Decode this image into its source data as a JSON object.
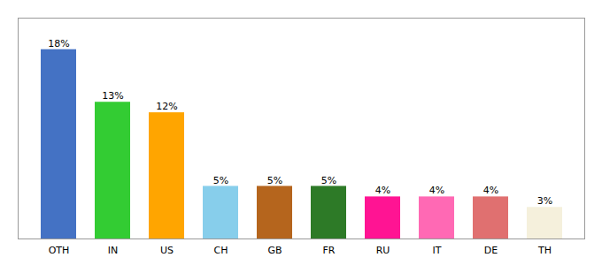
{
  "chart_data": {
    "type": "bar",
    "categories": [
      "OTH",
      "IN",
      "US",
      "CH",
      "GB",
      "FR",
      "RU",
      "IT",
      "DE",
      "TH"
    ],
    "values": [
      18,
      13,
      12,
      5,
      5,
      5,
      4,
      4,
      4,
      3
    ],
    "value_labels": [
      "18%",
      "13%",
      "12%",
      "5%",
      "5%",
      "5%",
      "4%",
      "4%",
      "4%",
      "3%"
    ],
    "colors": [
      "#4472C4",
      "#33CC33",
      "#FFA500",
      "#87CEEB",
      "#B5651D",
      "#2D7A27",
      "#FF1493",
      "#FF69B4",
      "#E07070",
      "#F5F0DC"
    ],
    "ylim": [
      0,
      21
    ],
    "data_labels": true,
    "tick_labels": "x"
  }
}
